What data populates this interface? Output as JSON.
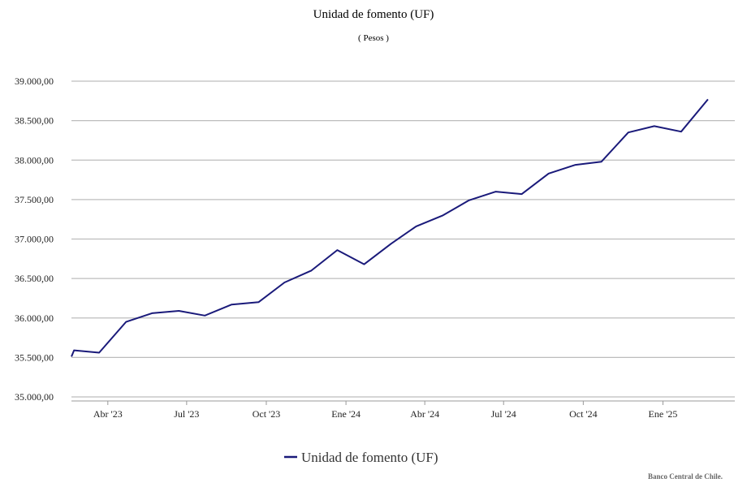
{
  "chart_data": {
    "type": "line",
    "title": "Unidad de fomento (UF)",
    "subtitle": "( Pesos )",
    "xlabel": "",
    "ylabel": "",
    "ylim": [
      35000,
      39000
    ],
    "yticks": [
      35000,
      35500,
      36000,
      36500,
      37000,
      37500,
      38000,
      38500,
      39000
    ],
    "ytick_labels": [
      "35.000,00",
      "35.500,00",
      "36.000,00",
      "36.500,00",
      "37.000,00",
      "37.500,00",
      "38.000,00",
      "38.500,00",
      "39.000,00"
    ],
    "xlim": [
      "2023-02-18",
      "2025-03-25"
    ],
    "xticks": [
      {
        "date": "2023-04-01",
        "label": "Abr '23"
      },
      {
        "date": "2023-07-01",
        "label": "Jul '23"
      },
      {
        "date": "2023-10-01",
        "label": "Oct '23"
      },
      {
        "date": "2024-01-01",
        "label": "Ene '24"
      },
      {
        "date": "2024-04-01",
        "label": "Abr '24"
      },
      {
        "date": "2024-07-01",
        "label": "Jul '24"
      },
      {
        "date": "2024-10-01",
        "label": "Oct '24"
      },
      {
        "date": "2025-01-01",
        "label": "Ene '25"
      }
    ],
    "grid": "horizontal",
    "legend_position": "bottom-center",
    "series": [
      {
        "name": "Unidad de fomento (UF)",
        "color": "#1a1a7a",
        "points": [
          {
            "x": "2023-02-18",
            "y": 35510
          },
          {
            "x": "2023-02-21",
            "y": 35590
          },
          {
            "x": "2023-03-22",
            "y": 35560
          },
          {
            "x": "2023-04-22",
            "y": 35950
          },
          {
            "x": "2023-05-22",
            "y": 36060
          },
          {
            "x": "2023-06-22",
            "y": 36090
          },
          {
            "x": "2023-07-22",
            "y": 36030
          },
          {
            "x": "2023-08-22",
            "y": 36170
          },
          {
            "x": "2023-09-22",
            "y": 36200
          },
          {
            "x": "2023-10-22",
            "y": 36450
          },
          {
            "x": "2023-11-22",
            "y": 36600
          },
          {
            "x": "2023-12-22",
            "y": 36860
          },
          {
            "x": "2024-01-22",
            "y": 36680
          },
          {
            "x": "2024-02-22",
            "y": 36940
          },
          {
            "x": "2024-03-22",
            "y": 37160
          },
          {
            "x": "2024-04-22",
            "y": 37300
          },
          {
            "x": "2024-05-22",
            "y": 37490
          },
          {
            "x": "2024-06-22",
            "y": 37600
          },
          {
            "x": "2024-07-22",
            "y": 37570
          },
          {
            "x": "2024-08-22",
            "y": 37830
          },
          {
            "x": "2024-09-22",
            "y": 37940
          },
          {
            "x": "2024-10-22",
            "y": 37980
          },
          {
            "x": "2024-11-22",
            "y": 38350
          },
          {
            "x": "2024-12-22",
            "y": 38430
          },
          {
            "x": "2025-01-22",
            "y": 38360
          },
          {
            "x": "2025-02-22",
            "y": 38770
          }
        ]
      }
    ]
  },
  "credit": "Banco Central de Chile."
}
